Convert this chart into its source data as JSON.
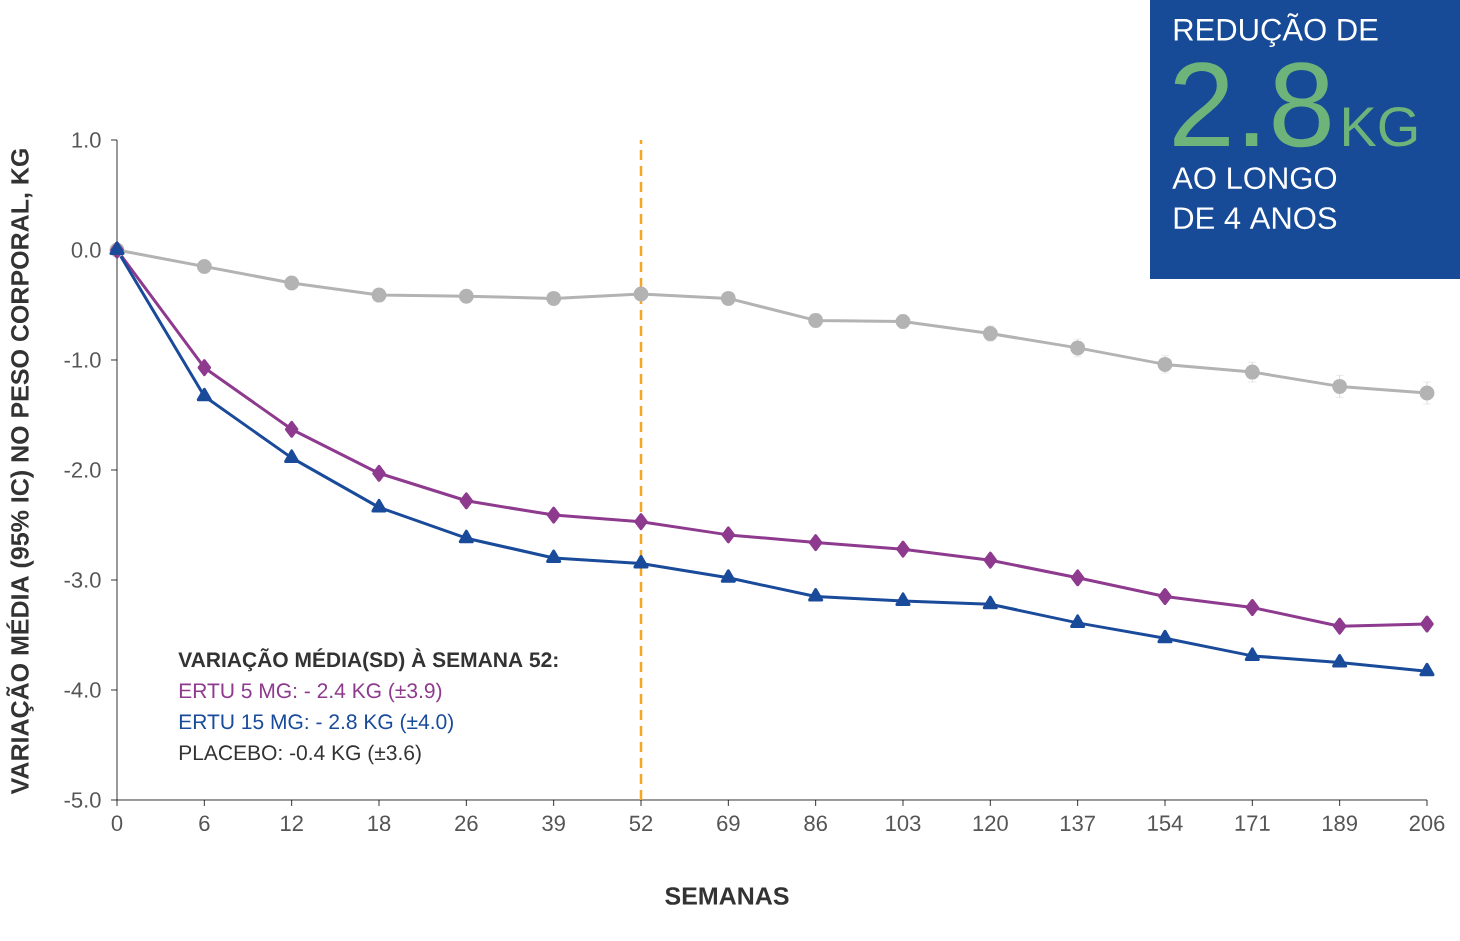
{
  "chart_data": {
    "type": "line",
    "xlabel": "SEMANAS",
    "ylabel": "VARIAÇÃO MÉDIA (95% IC) NO PESO CORPORAL, KG",
    "categories": [
      "0",
      "6",
      "12",
      "18",
      "26",
      "39",
      "52",
      "69",
      "86",
      "103",
      "120",
      "137",
      "154",
      "171",
      "189",
      "206"
    ],
    "ylim": [
      -5,
      1
    ],
    "yticks": [
      {
        "value": -5,
        "label": "-5.0"
      },
      {
        "value": -4,
        "label": "-4.0"
      },
      {
        "value": -3,
        "label": "-3.0"
      },
      {
        "value": -2,
        "label": "-2.0"
      },
      {
        "value": -1,
        "label": "-1.0"
      },
      {
        "value": 0,
        "label": "0.0"
      },
      {
        "value": 1,
        "label": "1.0"
      }
    ],
    "grid": false,
    "series": [
      {
        "color": "#b3b3b3",
        "marker": "circle",
        "values": [
          0,
          -0.15,
          -0.3,
          -0.41,
          -0.42,
          -0.44,
          -0.4,
          -0.44,
          -0.64,
          -0.65,
          -0.76,
          -0.89,
          -1.04,
          -1.11,
          -1.24,
          -1.3
        ],
        "errors": [
          null,
          null,
          null,
          null,
          null,
          null,
          null,
          null,
          0.06,
          0.06,
          0.07,
          0.08,
          0.08,
          0.09,
          0.1,
          0.1
        ]
      },
      {
        "color": "#8e3a8e",
        "marker": "diamond",
        "values": [
          0,
          -1.07,
          -1.63,
          -2.03,
          -2.28,
          -2.41,
          -2.47,
          -2.59,
          -2.66,
          -2.72,
          -2.82,
          -2.98,
          -3.15,
          -3.25,
          -3.42,
          -3.4
        ]
      },
      {
        "color": "#1a4b9b",
        "marker": "triangle",
        "values": [
          0,
          -1.33,
          -1.89,
          -2.34,
          -2.62,
          -2.8,
          -2.85,
          -2.98,
          -3.15,
          -3.19,
          -3.22,
          -3.39,
          -3.53,
          -3.69,
          -3.75,
          -3.83
        ]
      }
    ],
    "ref_lines": [
      {
        "axis": "x",
        "value": "52",
        "color": "#f5a623",
        "line_style": "dashed"
      }
    ],
    "annotations": [
      "REDUÇÃO DE",
      "2.8",
      "KG",
      "AO LONGO",
      "DE 4 ANOS",
      "VARIAÇÃO MÉDIA(SD) À SEMANA 52:",
      "ERTU 5 MG: - 2.4 KG (±3.9)",
      "ERTU 15 MG: - 2.8 KG (±4.0)",
      "PLACEBO: -0.4 KG (±3.6)"
    ]
  }
}
